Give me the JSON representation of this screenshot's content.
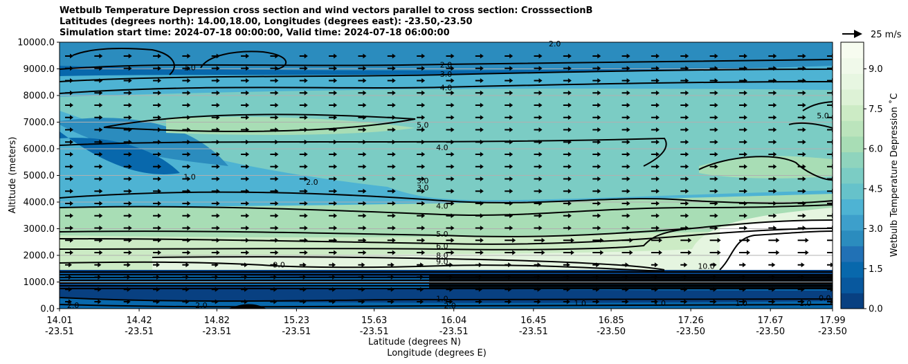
{
  "title": {
    "line1": "Wetbulb Temperature Depression cross section and wind vectors parallel to cross section: CrosssectionB",
    "line2": "Latitudes (degrees north): 14.00,18.00, Longitudes (degrees east): -23.50,-23.50",
    "line3": "Simulation start time: 2024-07-18 00:00:00, Valid time: 2024-07-18 06:00:00"
  },
  "quiver_key": {
    "label": "25 m/s"
  },
  "chart_data": {
    "type": "heatmap",
    "title": "Wetbulb Temperature Depression cross section and wind vectors parallel to cross section: CrosssectionB",
    "xlabel": "Latitude (degrees N)",
    "xlabel2": "Longitude (degrees E)",
    "ylabel": "Altitude (meters)",
    "colorbar_label": "Wetbulb Temperature Depression ˚C",
    "colormap": "GnBu_r",
    "colorbar_range": [
      0.0,
      10.0
    ],
    "colorbar_ticks": [
      "0.0",
      "1.5",
      "3.0",
      "4.5",
      "6.0",
      "7.5",
      "9.0"
    ],
    "colorbar_tick_values": [
      0,
      1.5,
      3.0,
      4.5,
      6.0,
      7.5,
      9.0
    ],
    "ylim": [
      0,
      10000
    ],
    "yticks": [
      "0.0",
      "1000.0",
      "2000.0",
      "3000.0",
      "4000.0",
      "5000.0",
      "6000.0",
      "7000.0",
      "8000.0",
      "9000.0",
      "10000.0"
    ],
    "ytick_values": [
      0,
      1000,
      2000,
      3000,
      4000,
      5000,
      6000,
      7000,
      8000,
      9000,
      10000
    ],
    "xlim": [
      14.01,
      17.99
    ],
    "xticks_lat": [
      "14.01",
      "14.42",
      "14.82",
      "15.23",
      "15.63",
      "16.04",
      "16.45",
      "16.85",
      "17.26",
      "17.67",
      "17.99"
    ],
    "xticks_lon": [
      "-23.51",
      "-23.51",
      "-23.51",
      "-23.51",
      "-23.51",
      "-23.51",
      "-23.51",
      "-23.50",
      "-23.50",
      "-23.50",
      "-23.50"
    ],
    "xtick_values": [
      14.01,
      14.42,
      14.82,
      15.23,
      15.63,
      16.04,
      16.45,
      16.85,
      17.26,
      17.67,
      17.99
    ],
    "grid": "horizontal",
    "contour_labels": [
      {
        "text": "2.0",
        "x": 16.0,
        "y": 9100
      },
      {
        "text": "3.0",
        "x": 16.0,
        "y": 8750
      },
      {
        "text": "4.0",
        "x": 16.0,
        "y": 8250
      },
      {
        "text": "1.0",
        "x": 14.68,
        "y": 9000
      },
      {
        "text": "2.0",
        "x": 16.56,
        "y": 9900
      },
      {
        "text": "5.0",
        "x": 15.88,
        "y": 6850
      },
      {
        "text": "4.0",
        "x": 15.98,
        "y": 6000
      },
      {
        "text": "5.0",
        "x": 17.94,
        "y": 7200
      },
      {
        "text": "1.0",
        "x": 14.68,
        "y": 4900
      },
      {
        "text": "2.0",
        "x": 15.31,
        "y": 4700
      },
      {
        "text": "3.0",
        "x": 15.88,
        "y": 4750
      },
      {
        "text": "3.0",
        "x": 15.88,
        "y": 4500
      },
      {
        "text": "4.0",
        "x": 15.98,
        "y": 3800
      },
      {
        "text": "5.0",
        "x": 15.98,
        "y": 2750
      },
      {
        "text": "6.0",
        "x": 15.98,
        "y": 2300
      },
      {
        "text": "8.0",
        "x": 15.98,
        "y": 1950
      },
      {
        "text": "9.0",
        "x": 15.98,
        "y": 1720
      },
      {
        "text": "9.0",
        "x": 15.14,
        "y": 1600
      },
      {
        "text": "10.0",
        "x": 17.34,
        "y": 1550
      },
      {
        "text": "1.0",
        "x": 15.98,
        "y": 320
      },
      {
        "text": "2.0",
        "x": 16.02,
        "y": 60
      },
      {
        "text": "2.0",
        "x": 14.08,
        "y": 80
      },
      {
        "text": "2.0",
        "x": 14.74,
        "y": 80
      },
      {
        "text": "1.0",
        "x": 16.69,
        "y": 150
      },
      {
        "text": "1.0",
        "x": 17.1,
        "y": 150
      },
      {
        "text": "1.0",
        "x": 17.52,
        "y": 150
      },
      {
        "text": "0.0",
        "x": 17.95,
        "y": 350
      },
      {
        "text": "1.0",
        "x": 17.85,
        "y": 150
      }
    ],
    "wind": {
      "direction": "east",
      "note": "wind vectors parallel to cross section"
    }
  }
}
